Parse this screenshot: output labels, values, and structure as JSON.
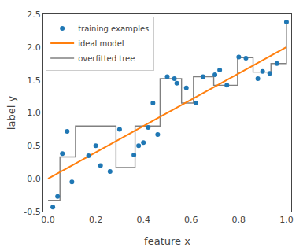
{
  "chart_data": {
    "type": "scatter",
    "xlabel": "feature x",
    "ylabel": "label y",
    "xlim": [
      -0.02,
      1.02
    ],
    "ylim": [
      -0.5,
      2.5
    ],
    "xticks": [
      {
        "value": 0.0,
        "label": "0.0"
      },
      0.2,
      0.4,
      0.6,
      0.8,
      {
        "value": 1.0,
        "label": "1.0"
      }
    ],
    "yticks": [
      -0.5,
      {
        "value": 0.0,
        "label": "0.0"
      },
      0.5,
      {
        "value": 1.0,
        "label": "1.0"
      },
      1.5,
      {
        "value": 2.0,
        "label": "2.0"
      },
      2.5
    ],
    "grid": false,
    "legend": "upper left",
    "series": [
      {
        "name": "training examples",
        "type": "scatter",
        "marker": "circle",
        "color": "#1f77b4",
        "x": [
          0.02,
          0.04,
          0.06,
          0.08,
          0.1,
          0.17,
          0.2,
          0.22,
          0.26,
          0.3,
          0.36,
          0.38,
          0.4,
          0.42,
          0.44,
          0.46,
          0.5,
          0.53,
          0.54,
          0.58,
          0.62,
          0.65,
          0.7,
          0.72,
          0.75,
          0.8,
          0.83,
          0.88,
          0.9,
          0.93,
          0.96,
          1.0
        ],
        "values": [
          -0.43,
          -0.27,
          0.38,
          0.72,
          -0.05,
          0.35,
          0.5,
          0.2,
          0.11,
          0.75,
          0.36,
          0.5,
          0.55,
          0.78,
          1.15,
          0.67,
          1.55,
          1.52,
          1.45,
          1.38,
          1.15,
          1.55,
          1.58,
          1.65,
          1.42,
          1.85,
          1.83,
          1.52,
          1.63,
          1.6,
          1.75,
          2.38
        ]
      },
      {
        "name": "ideal model",
        "type": "line",
        "line_style": "solid",
        "color": "#ff7f0e",
        "x": [
          0.0,
          1.0
        ],
        "values": [
          0.0,
          2.0
        ]
      },
      {
        "name": "overfitted tree",
        "type": "line",
        "line_style": "solid",
        "color": "#808080",
        "x": [
          0.0,
          0.05,
          0.05,
          0.115,
          0.115,
          0.285,
          0.285,
          0.365,
          0.365,
          0.47,
          0.47,
          0.56,
          0.56,
          0.61,
          0.61,
          0.695,
          0.695,
          0.795,
          0.795,
          0.86,
          0.86,
          0.935,
          0.935,
          1.0,
          1.0
        ],
        "values": [
          -0.33,
          -0.33,
          0.33,
          0.33,
          0.8,
          0.8,
          0.17,
          0.17,
          0.8,
          0.8,
          1.52,
          1.52,
          1.15,
          1.15,
          1.55,
          1.55,
          1.42,
          1.42,
          1.84,
          1.84,
          1.62,
          1.62,
          1.75,
          1.75,
          2.38
        ]
      }
    ]
  }
}
